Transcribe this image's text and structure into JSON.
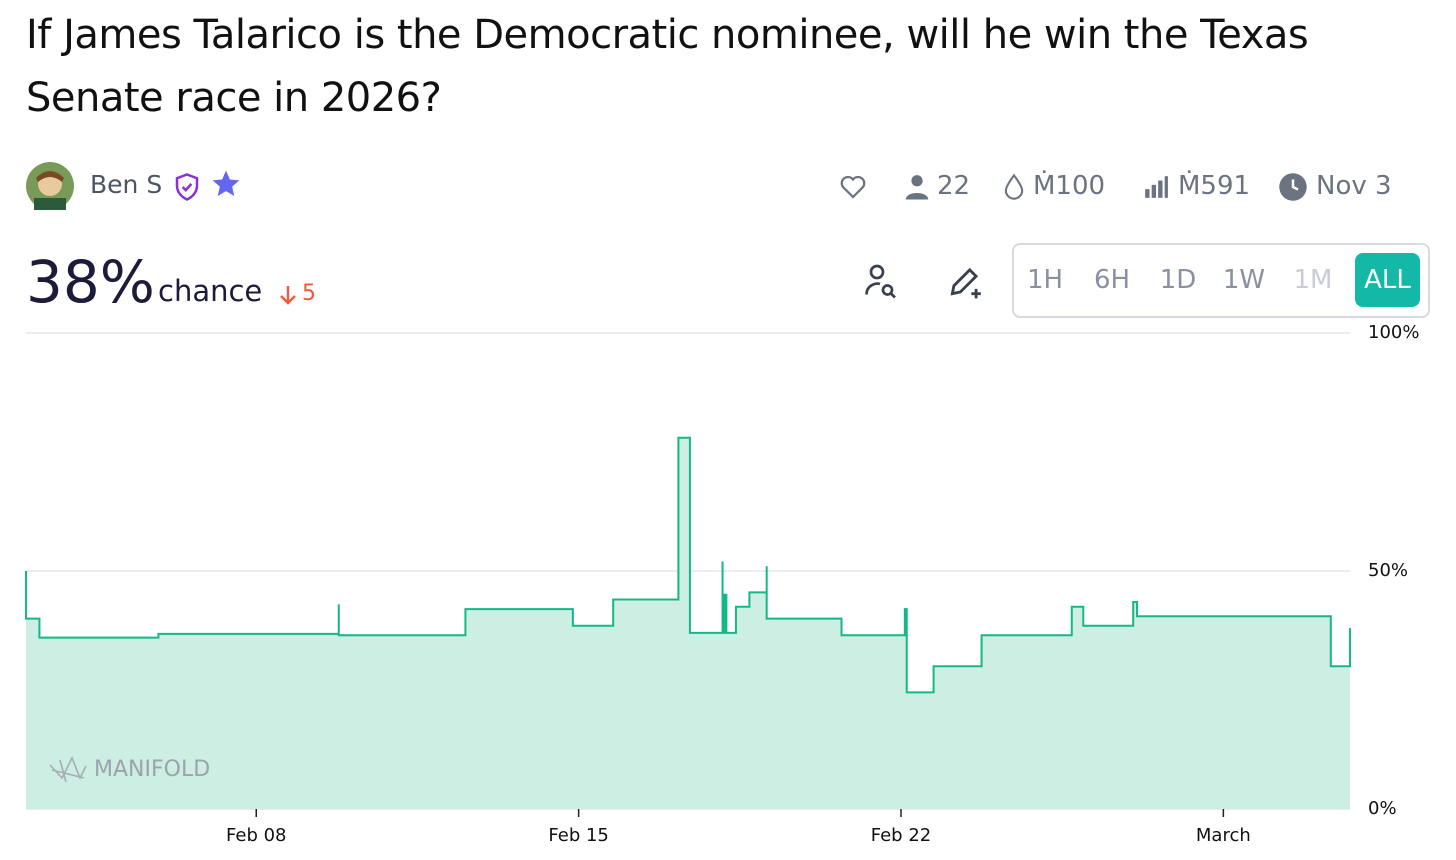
{
  "header": {
    "title": "If James Talarico is the Democratic nominee, will he win the Texas Senate race in 2026?",
    "author": "Ben S",
    "stats": {
      "traders": "22",
      "liquidity": "Ṁ100",
      "volume": "Ṁ591",
      "close_date": "Nov 3"
    }
  },
  "probability": {
    "value": "38%",
    "label": "chance",
    "change": "5"
  },
  "time_ranges": [
    "1H",
    "6H",
    "1D",
    "1W",
    "1M",
    "ALL"
  ],
  "watermark": "MANIFOLD",
  "chart_data": {
    "type": "line",
    "step": true,
    "color": "#14b886",
    "fill": "#cdeee2",
    "grid": true,
    "x": [
      "Feb 03 00:00",
      "Feb 03 00:00",
      "Feb 03 07:00",
      "Feb 05 21:00",
      "Feb 09 19:00",
      "Feb 09 19:00",
      "Feb 12 13:00",
      "Feb 14 21:00",
      "Feb 15 18:00",
      "Feb 17 04:00",
      "Feb 17 10:00",
      "Feb 18 03:00",
      "Feb 18 03:00",
      "Feb 18 04:00",
      "Feb 18 05:00",
      "Feb 18 10:00",
      "Feb 18 17:00",
      "Feb 19 02:00",
      "Feb 19 02:00",
      "Feb 20 17:00",
      "Feb 22 02:00",
      "Feb 22 03:00",
      "Feb 22 17:00",
      "Feb 23 18:00",
      "Feb 25 17:00",
      "Feb 25 23:00",
      "Feb 27 01:00",
      "Feb 27 03:00",
      "Mar 03 08:00",
      "Mar 03 18:00"
    ],
    "series": [
      {
        "name": "Probability",
        "color": "#14b886",
        "values": [
          50,
          40,
          36,
          36.8,
          43,
          36.5,
          42,
          38.5,
          44,
          78,
          37,
          52,
          37,
          45,
          37,
          42.5,
          45.5,
          51,
          40,
          36.5,
          42,
          24.5,
          30,
          36.5,
          42.5,
          38.5,
          43.5,
          40.5,
          30,
          38
        ]
      }
    ],
    "xlim": [
      "Feb 03 00:00",
      "Mar 03 18:00"
    ],
    "xticks": [
      {
        "value": "Feb 08 00:00",
        "label": "Feb 08"
      },
      {
        "value": "Feb 15 00:00",
        "label": "Feb 15"
      },
      {
        "value": "Feb 22 00:00",
        "label": "Feb 22"
      },
      {
        "value": "Mar 01 00:00",
        "label": "March"
      }
    ],
    "ylim": [
      0,
      100
    ],
    "yticks": [
      {
        "value": 0,
        "label": "0%"
      },
      {
        "value": 50,
        "label": "50%"
      },
      {
        "value": 100,
        "label": "100%"
      }
    ]
  }
}
